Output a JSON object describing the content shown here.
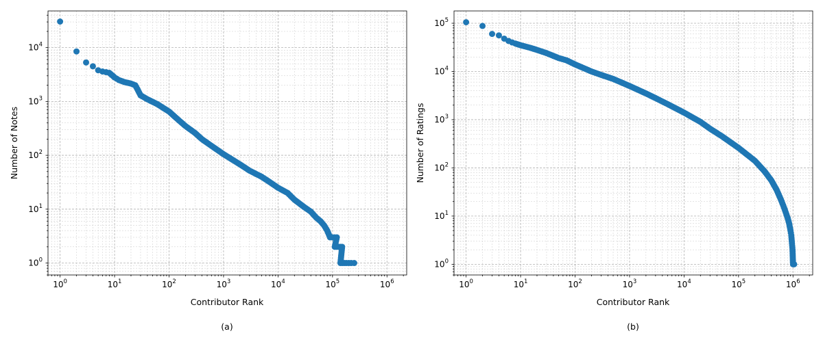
{
  "chart_data": [
    {
      "type": "scatter",
      "caption": "(a)",
      "xlabel": "Contributor Rank",
      "ylabel": "Number of Notes",
      "xscale": "log",
      "yscale": "log",
      "xlim": [
        0.6,
        2300000
      ],
      "ylim": [
        0.6,
        48000
      ],
      "xticks": [
        {
          "base": "10",
          "exp": "0",
          "value": 1
        },
        {
          "base": "10",
          "exp": "1",
          "value": 10
        },
        {
          "base": "10",
          "exp": "2",
          "value": 100
        },
        {
          "base": "10",
          "exp": "3",
          "value": 1000
        },
        {
          "base": "10",
          "exp": "4",
          "value": 10000
        },
        {
          "base": "10",
          "exp": "5",
          "value": 100000
        },
        {
          "base": "10",
          "exp": "6",
          "value": 1000000
        }
      ],
      "yticks": [
        {
          "base": "10",
          "exp": "0",
          "value": 1
        },
        {
          "base": "10",
          "exp": "1",
          "value": 10
        },
        {
          "base": "10",
          "exp": "2",
          "value": 100
        },
        {
          "base": "10",
          "exp": "3",
          "value": 1000
        },
        {
          "base": "10",
          "exp": "4",
          "value": 10000
        }
      ],
      "grid": true,
      "marker_color": "#1f77b4",
      "series": [
        {
          "points": [
            [
              1,
              30500
            ],
            [
              2,
              8500
            ],
            [
              3,
              5300
            ],
            [
              4,
              4500
            ],
            [
              5,
              3800
            ],
            [
              6,
              3600
            ],
            [
              7,
              3500
            ],
            [
              8,
              3400
            ],
            [
              10,
              2800
            ],
            [
              12,
              2500
            ],
            [
              15,
              2300
            ],
            [
              20,
              2150
            ],
            [
              24,
              2000
            ],
            [
              27,
              1600
            ],
            [
              30,
              1300
            ],
            [
              40,
              1100
            ],
            [
              60,
              900
            ],
            [
              100,
              650
            ],
            [
              150,
              450
            ],
            [
              200,
              350
            ],
            [
              300,
              260
            ],
            [
              400,
              200
            ],
            [
              600,
              150
            ],
            [
              1000,
              105
            ],
            [
              2000,
              68
            ],
            [
              3000,
              52
            ],
            [
              5000,
              40
            ],
            [
              7000,
              32
            ],
            [
              10000,
              25
            ],
            [
              15000,
              20
            ],
            [
              20000,
              15
            ],
            [
              30000,
              11
            ],
            [
              40000,
              9
            ],
            [
              50000,
              7
            ],
            [
              60000,
              6
            ],
            [
              70000,
              5
            ],
            [
              80000,
              4
            ],
            [
              90000,
              3
            ],
            [
              120000,
              3
            ],
            [
              110000,
              2
            ],
            [
              150000,
              2
            ],
            [
              140000,
              1
            ],
            [
              180000,
              1
            ],
            [
              220000,
              1
            ],
            [
              250000,
              1
            ]
          ]
        }
      ]
    },
    {
      "type": "scatter",
      "caption": "(b)",
      "xlabel": "Contributor Rank",
      "ylabel": "Number of Ratings",
      "xscale": "log",
      "yscale": "log",
      "xlim": [
        0.6,
        2300000
      ],
      "ylim": [
        0.6,
        180000
      ],
      "xticks": [
        {
          "base": "10",
          "exp": "0",
          "value": 1
        },
        {
          "base": "10",
          "exp": "1",
          "value": 10
        },
        {
          "base": "10",
          "exp": "2",
          "value": 100
        },
        {
          "base": "10",
          "exp": "3",
          "value": 1000
        },
        {
          "base": "10",
          "exp": "4",
          "value": 10000
        },
        {
          "base": "10",
          "exp": "5",
          "value": 100000
        },
        {
          "base": "10",
          "exp": "6",
          "value": 1000000
        }
      ],
      "yticks": [
        {
          "base": "10",
          "exp": "0",
          "value": 1
        },
        {
          "base": "10",
          "exp": "1",
          "value": 10
        },
        {
          "base": "10",
          "exp": "2",
          "value": 100
        },
        {
          "base": "10",
          "exp": "3",
          "value": 1000
        },
        {
          "base": "10",
          "exp": "4",
          "value": 10000
        },
        {
          "base": "10",
          "exp": "5",
          "value": 100000
        }
      ],
      "grid": true,
      "marker_color": "#1f77b4",
      "series": [
        {
          "points": [
            [
              1,
              105000
            ],
            [
              2,
              88000
            ],
            [
              3,
              60000
            ],
            [
              4,
              56000
            ],
            [
              5,
              48000
            ],
            [
              6,
              43000
            ],
            [
              7,
              40000
            ],
            [
              8,
              38000
            ],
            [
              10,
              35000
            ],
            [
              15,
              31000
            ],
            [
              20,
              28000
            ],
            [
              30,
              24000
            ],
            [
              50,
              19000
            ],
            [
              70,
              17000
            ],
            [
              100,
              14000
            ],
            [
              200,
              10000
            ],
            [
              300,
              8500
            ],
            [
              500,
              7000
            ],
            [
              1000,
              5000
            ],
            [
              2000,
              3500
            ],
            [
              3000,
              2800
            ],
            [
              5000,
              2100
            ],
            [
              10000,
              1400
            ],
            [
              20000,
              900
            ],
            [
              30000,
              650
            ],
            [
              50000,
              450
            ],
            [
              100000,
              260
            ],
            [
              200000,
              140
            ],
            [
              300000,
              85
            ],
            [
              400000,
              55
            ],
            [
              500000,
              35
            ],
            [
              600000,
              22
            ],
            [
              700000,
              14
            ],
            [
              800000,
              9
            ],
            [
              850000,
              7
            ],
            [
              900000,
              5
            ],
            [
              930000,
              4
            ],
            [
              950000,
              3
            ],
            [
              980000,
              2
            ],
            [
              1000000,
              1
            ],
            [
              1050000,
              1
            ]
          ]
        }
      ]
    }
  ]
}
